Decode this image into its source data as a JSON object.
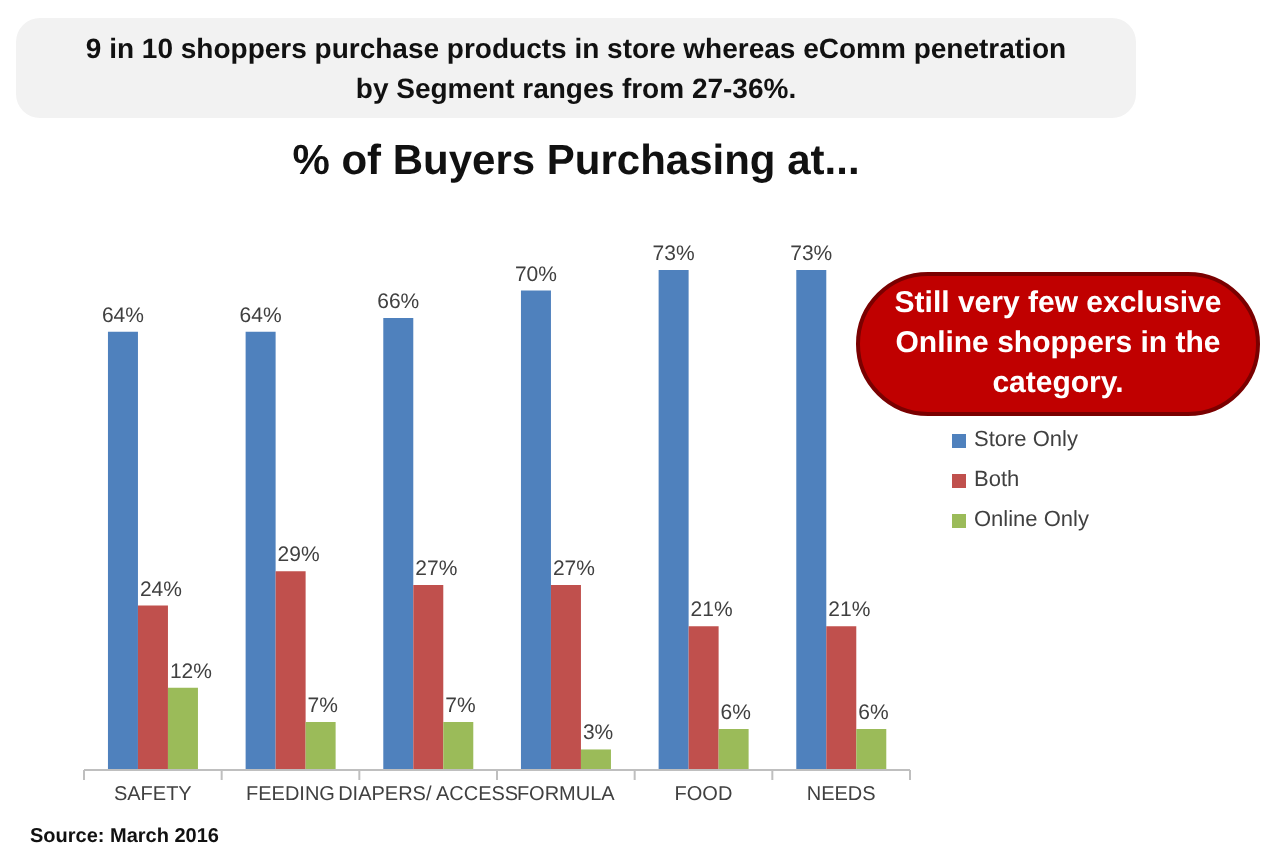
{
  "chart_data": {
    "type": "bar",
    "title": "% of Buyers Purchasing at...",
    "subtitle": "9 in 10 shoppers purchase products in store whereas eComm penetration by Segment ranges from 27-36%.",
    "annotations": [
      "Still very few exclusive Online shoppers in the category.",
      "Source: March 2016"
    ],
    "categories": [
      "SAFETY",
      "FEEDING",
      "DIAPERS/ ACCESS",
      "FORMULA",
      "FOOD",
      "NEEDS"
    ],
    "series": [
      {
        "name": "Store Only",
        "color": "#4f81bd",
        "values": [
          64,
          64,
          66,
          70,
          73,
          73
        ],
        "value_labels": [
          "64%",
          "64%",
          "66%",
          "70%",
          "73%",
          "73%"
        ]
      },
      {
        "name": "Both",
        "color": "#c0504d",
        "values": [
          24,
          29,
          27,
          27,
          21,
          21
        ],
        "value_labels": [
          "24%",
          "29%",
          "27%",
          "27%",
          "21%",
          "21%"
        ]
      },
      {
        "name": "Online Only",
        "color": "#9bbb59",
        "values": [
          12,
          7,
          7,
          3,
          6,
          6
        ],
        "value_labels": [
          "12%",
          "7%",
          "7%",
          "3%",
          "6%",
          "6%"
        ]
      }
    ],
    "legend": "right"
  }
}
